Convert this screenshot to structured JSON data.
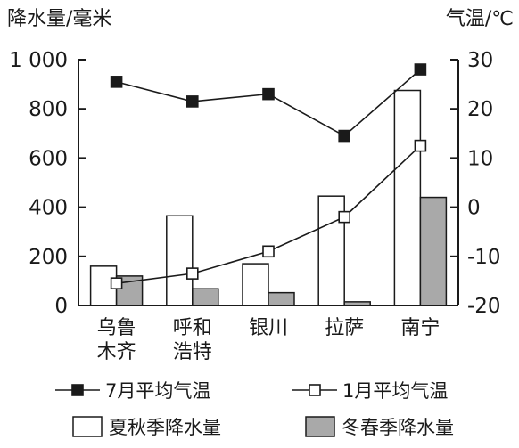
{
  "chart_data": {
    "type": "bar+line",
    "categories": [
      "乌鲁\n木齐",
      "呼和\n浩特",
      "银川",
      "拉萨",
      "南宁"
    ],
    "left_axis": {
      "title": "降水量/毫米",
      "ylim": [
        0,
        1000
      ],
      "ticks": [
        0,
        200,
        400,
        600,
        800,
        1000
      ],
      "tick_labels": [
        "0",
        "200",
        "400",
        "600",
        "800",
        "1 000"
      ]
    },
    "right_axis": {
      "title": "气温/℃",
      "ylim": [
        -20,
        30
      ],
      "ticks": [
        -20,
        -10,
        0,
        10,
        20,
        30
      ],
      "tick_labels": [
        "-20",
        "-10",
        "0",
        "10",
        "20",
        "30"
      ]
    },
    "bar_series": [
      {
        "name": "夏秋季降水量",
        "axis": "left",
        "fill": "#ffffff",
        "values": [
          160,
          365,
          170,
          445,
          875
        ]
      },
      {
        "name": "冬春季降水量",
        "axis": "left",
        "fill": "#a9a9a9",
        "values": [
          120,
          68,
          52,
          15,
          440
        ]
      }
    ],
    "line_series": [
      {
        "name": "7月平均气温",
        "axis": "right",
        "marker": "filled-square",
        "values": [
          25.5,
          21.5,
          23.0,
          14.5,
          28.0
        ]
      },
      {
        "name": "1月平均气温",
        "axis": "right",
        "marker": "open-square",
        "values": [
          -15.5,
          -13.5,
          -9.0,
          -2.0,
          12.5
        ]
      }
    ],
    "legend": {
      "placement": "bottom",
      "items": [
        "7月平均气温",
        "1月平均气温",
        "夏秋季降水量",
        "冬春季降水量"
      ]
    }
  }
}
